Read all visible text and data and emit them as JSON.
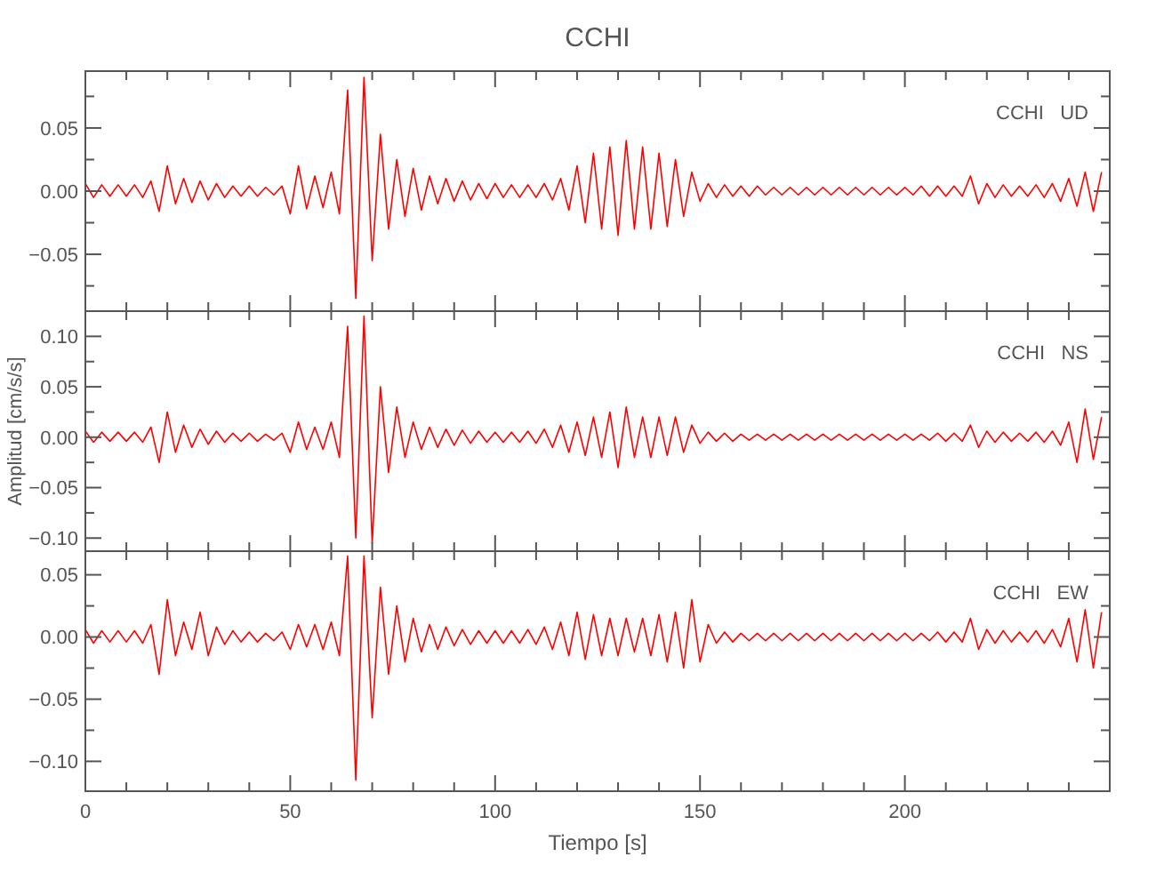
{
  "chart_data": [
    {
      "type": "line",
      "title": "CCHI",
      "annotations": [
        "CCHI   UD"
      ],
      "tick_labels": "y",
      "xlim": [
        0,
        250
      ],
      "ylim": [
        -0.095,
        0.095
      ],
      "xticks": [
        0,
        {
          "value": 10,
          "label": null
        },
        {
          "value": 20,
          "label": null
        },
        {
          "value": 30,
          "label": null
        },
        {
          "value": 40,
          "label": null
        },
        50,
        {
          "value": 60,
          "label": null
        },
        {
          "value": 70,
          "label": null
        },
        {
          "value": 80,
          "label": null
        },
        {
          "value": 90,
          "label": null
        },
        100,
        {
          "value": 110,
          "label": null
        },
        {
          "value": 120,
          "label": null
        },
        {
          "value": 130,
          "label": null
        },
        {
          "value": 140,
          "label": null
        },
        150,
        {
          "value": 160,
          "label": null
        },
        {
          "value": 170,
          "label": null
        },
        {
          "value": 180,
          "label": null
        },
        {
          "value": 190,
          "label": null
        },
        200,
        {
          "value": 210,
          "label": null
        },
        {
          "value": 220,
          "label": null
        },
        {
          "value": 230,
          "label": null
        },
        {
          "value": 240,
          "label": null
        }
      ],
      "yticks": [
        {
          "value": -0.075,
          "label": null
        },
        {
          "value": -0.05,
          "label": "−0.05"
        },
        {
          "value": -0.025,
          "label": null
        },
        {
          "value": 0,
          "label": "0.00"
        },
        {
          "value": 0.025,
          "label": null
        },
        {
          "value": 0.05,
          "label": "0.05"
        },
        {
          "value": 0.075,
          "label": null
        }
      ],
      "x": [
        0,
        2,
        4,
        6,
        8,
        10,
        12,
        14,
        16,
        18,
        20,
        22,
        24,
        26,
        28,
        30,
        32,
        34,
        36,
        38,
        40,
        42,
        44,
        46,
        48,
        50,
        52,
        54,
        56,
        58,
        60,
        62,
        64,
        66,
        68,
        70,
        72,
        74,
        76,
        78,
        80,
        82,
        84,
        86,
        88,
        90,
        92,
        94,
        96,
        98,
        100,
        102,
        104,
        106,
        108,
        110,
        112,
        114,
        116,
        118,
        120,
        122,
        124,
        126,
        128,
        130,
        132,
        134,
        136,
        138,
        140,
        142,
        144,
        146,
        148,
        150,
        152,
        154,
        156,
        158,
        160,
        162,
        164,
        166,
        168,
        170,
        172,
        174,
        176,
        178,
        180,
        182,
        184,
        186,
        188,
        190,
        192,
        194,
        196,
        198,
        200,
        202,
        204,
        206,
        208,
        210,
        212,
        214,
        216,
        218,
        220,
        222,
        224,
        226,
        228,
        230,
        232,
        234,
        236,
        238,
        240,
        242,
        244,
        246,
        248
      ],
      "series": [
        {
          "color": "#ff0000",
          "values": [
            0.006,
            -0.005,
            0.005,
            -0.004,
            0.005,
            -0.004,
            0.005,
            -0.005,
            0.008,
            -0.016,
            0.02,
            -0.01,
            0.01,
            -0.009,
            0.008,
            -0.007,
            0.006,
            -0.005,
            0.004,
            -0.004,
            0.004,
            -0.004,
            0.003,
            -0.003,
            0.004,
            -0.018,
            0.02,
            -0.014,
            0.012,
            -0.013,
            0.015,
            -0.018,
            0.08,
            -0.085,
            0.09,
            -0.055,
            0.045,
            -0.03,
            0.025,
            -0.02,
            0.018,
            -0.015,
            0.012,
            -0.01,
            0.01,
            -0.008,
            0.008,
            -0.007,
            0.006,
            -0.006,
            0.006,
            -0.005,
            0.005,
            -0.005,
            0.005,
            -0.005,
            0.006,
            -0.007,
            0.01,
            -0.015,
            0.02,
            -0.025,
            0.03,
            -0.03,
            0.035,
            -0.035,
            0.04,
            -0.03,
            0.035,
            -0.03,
            0.03,
            -0.028,
            0.025,
            -0.02,
            0.015,
            -0.008,
            0.006,
            -0.005,
            0.005,
            -0.004,
            0.004,
            -0.004,
            0.004,
            -0.003,
            0.003,
            -0.003,
            0.003,
            -0.003,
            0.003,
            -0.003,
            0.003,
            -0.003,
            0.003,
            -0.003,
            0.003,
            -0.003,
            0.003,
            -0.003,
            0.003,
            -0.003,
            0.003,
            -0.003,
            0.004,
            -0.004,
            0.004,
            -0.004,
            0.004,
            -0.004,
            0.012,
            -0.01,
            0.006,
            -0.005,
            0.005,
            -0.004,
            0.004,
            -0.004,
            0.005,
            -0.005,
            0.006,
            -0.008,
            0.01,
            -0.012,
            0.015,
            -0.016,
            0.015
          ]
        }
      ]
    },
    {
      "type": "line",
      "ylabel": "Amplitud [cm/s/s]",
      "annotations": [
        "CCHI   NS"
      ],
      "tick_labels": "y",
      "xlim": [
        0,
        250
      ],
      "ylim": [
        -0.113,
        0.125
      ],
      "xticks": [
        0,
        {
          "value": 10,
          "label": null
        },
        {
          "value": 20,
          "label": null
        },
        {
          "value": 30,
          "label": null
        },
        {
          "value": 40,
          "label": null
        },
        50,
        {
          "value": 60,
          "label": null
        },
        {
          "value": 70,
          "label": null
        },
        {
          "value": 80,
          "label": null
        },
        {
          "value": 90,
          "label": null
        },
        100,
        {
          "value": 110,
          "label": null
        },
        {
          "value": 120,
          "label": null
        },
        {
          "value": 130,
          "label": null
        },
        {
          "value": 140,
          "label": null
        },
        150,
        {
          "value": 160,
          "label": null
        },
        {
          "value": 170,
          "label": null
        },
        {
          "value": 180,
          "label": null
        },
        {
          "value": 190,
          "label": null
        },
        200,
        {
          "value": 210,
          "label": null
        },
        {
          "value": 220,
          "label": null
        },
        {
          "value": 230,
          "label": null
        },
        {
          "value": 240,
          "label": null
        }
      ],
      "yticks": [
        {
          "value": -0.1,
          "label": "−0.10"
        },
        {
          "value": -0.075,
          "label": null
        },
        {
          "value": -0.05,
          "label": "−0.05"
        },
        {
          "value": -0.025,
          "label": null
        },
        {
          "value": 0,
          "label": "0.00"
        },
        {
          "value": 0.025,
          "label": null
        },
        {
          "value": 0.05,
          "label": "0.05"
        },
        {
          "value": 0.075,
          "label": null
        },
        {
          "value": 0.1,
          "label": "0.10"
        }
      ],
      "x": [
        0,
        2,
        4,
        6,
        8,
        10,
        12,
        14,
        16,
        18,
        20,
        22,
        24,
        26,
        28,
        30,
        32,
        34,
        36,
        38,
        40,
        42,
        44,
        46,
        48,
        50,
        52,
        54,
        56,
        58,
        60,
        62,
        64,
        66,
        68,
        70,
        72,
        74,
        76,
        78,
        80,
        82,
        84,
        86,
        88,
        90,
        92,
        94,
        96,
        98,
        100,
        102,
        104,
        106,
        108,
        110,
        112,
        114,
        116,
        118,
        120,
        122,
        124,
        126,
        128,
        130,
        132,
        134,
        136,
        138,
        140,
        142,
        144,
        146,
        148,
        150,
        152,
        154,
        156,
        158,
        160,
        162,
        164,
        166,
        168,
        170,
        172,
        174,
        176,
        178,
        180,
        182,
        184,
        186,
        188,
        190,
        192,
        194,
        196,
        198,
        200,
        202,
        204,
        206,
        208,
        210,
        212,
        214,
        216,
        218,
        220,
        222,
        224,
        226,
        228,
        230,
        232,
        234,
        236,
        238,
        240,
        242,
        244,
        246,
        248
      ],
      "series": [
        {
          "color": "#ff0000",
          "values": [
            0.006,
            -0.005,
            0.005,
            -0.004,
            0.005,
            -0.004,
            0.005,
            -0.005,
            0.01,
            -0.025,
            0.025,
            -0.015,
            0.012,
            -0.01,
            0.008,
            -0.007,
            0.006,
            -0.005,
            0.004,
            -0.004,
            0.004,
            -0.004,
            0.003,
            -0.003,
            0.004,
            -0.015,
            0.015,
            -0.012,
            0.01,
            -0.012,
            0.015,
            -0.02,
            0.11,
            -0.1,
            0.12,
            -0.105,
            0.05,
            -0.035,
            0.03,
            -0.02,
            0.015,
            -0.012,
            0.01,
            -0.01,
            0.008,
            -0.008,
            0.007,
            -0.006,
            0.006,
            -0.005,
            0.005,
            -0.005,
            0.005,
            -0.005,
            0.006,
            -0.006,
            0.008,
            -0.01,
            0.012,
            -0.015,
            0.015,
            -0.018,
            0.02,
            -0.02,
            0.025,
            -0.03,
            0.03,
            -0.02,
            0.02,
            -0.02,
            0.02,
            -0.018,
            0.02,
            -0.015,
            0.012,
            -0.006,
            0.005,
            -0.004,
            0.004,
            -0.004,
            0.003,
            -0.003,
            0.003,
            -0.003,
            0.003,
            -0.003,
            0.003,
            -0.003,
            0.003,
            -0.003,
            0.003,
            -0.003,
            0.003,
            -0.003,
            0.003,
            -0.003,
            0.003,
            -0.003,
            0.003,
            -0.003,
            0.003,
            -0.003,
            0.003,
            -0.003,
            0.004,
            -0.004,
            0.004,
            -0.004,
            0.012,
            -0.01,
            0.006,
            -0.005,
            0.005,
            -0.004,
            0.004,
            -0.004,
            0.005,
            -0.005,
            0.006,
            -0.008,
            0.015,
            -0.025,
            0.028,
            -0.022,
            0.02
          ]
        }
      ]
    },
    {
      "type": "line",
      "xlabel": "Tiempo [s]",
      "annotations": [
        "CCHI   EW"
      ],
      "xlim": [
        0,
        250
      ],
      "ylim": [
        -0.124,
        0.069
      ],
      "xticks": [
        0,
        {
          "value": 10,
          "label": null
        },
        {
          "value": 20,
          "label": null
        },
        {
          "value": 30,
          "label": null
        },
        {
          "value": 40,
          "label": null
        },
        50,
        {
          "value": 60,
          "label": null
        },
        {
          "value": 70,
          "label": null
        },
        {
          "value": 80,
          "label": null
        },
        {
          "value": 90,
          "label": null
        },
        100,
        {
          "value": 110,
          "label": null
        },
        {
          "value": 120,
          "label": null
        },
        {
          "value": 130,
          "label": null
        },
        {
          "value": 140,
          "label": null
        },
        150,
        {
          "value": 160,
          "label": null
        },
        {
          "value": 170,
          "label": null
        },
        {
          "value": 180,
          "label": null
        },
        {
          "value": 190,
          "label": null
        },
        200,
        {
          "value": 210,
          "label": null
        },
        {
          "value": 220,
          "label": null
        },
        {
          "value": 230,
          "label": null
        },
        {
          "value": 240,
          "label": null
        }
      ],
      "yticks": [
        {
          "value": -0.1,
          "label": "−0.10"
        },
        {
          "value": -0.075,
          "label": null
        },
        {
          "value": -0.05,
          "label": "−0.05"
        },
        {
          "value": -0.025,
          "label": null
        },
        {
          "value": 0,
          "label": "0.00"
        },
        {
          "value": 0.025,
          "label": null
        },
        {
          "value": 0.05,
          "label": "0.05"
        }
      ],
      "x": [
        0,
        2,
        4,
        6,
        8,
        10,
        12,
        14,
        16,
        18,
        20,
        22,
        24,
        26,
        28,
        30,
        32,
        34,
        36,
        38,
        40,
        42,
        44,
        46,
        48,
        50,
        52,
        54,
        56,
        58,
        60,
        62,
        64,
        66,
        68,
        70,
        72,
        74,
        76,
        78,
        80,
        82,
        84,
        86,
        88,
        90,
        92,
        94,
        96,
        98,
        100,
        102,
        104,
        106,
        108,
        110,
        112,
        114,
        116,
        118,
        120,
        122,
        124,
        126,
        128,
        130,
        132,
        134,
        136,
        138,
        140,
        142,
        144,
        146,
        148,
        150,
        152,
        154,
        156,
        158,
        160,
        162,
        164,
        166,
        168,
        170,
        172,
        174,
        176,
        178,
        180,
        182,
        184,
        186,
        188,
        190,
        192,
        194,
        196,
        198,
        200,
        202,
        204,
        206,
        208,
        210,
        212,
        214,
        216,
        218,
        220,
        222,
        224,
        226,
        228,
        230,
        232,
        234,
        236,
        238,
        240,
        242,
        244,
        246,
        248
      ],
      "series": [
        {
          "color": "#ff0000",
          "values": [
            0.006,
            -0.005,
            0.005,
            -0.004,
            0.005,
            -0.004,
            0.005,
            -0.005,
            0.01,
            -0.03,
            0.03,
            -0.015,
            0.012,
            -0.01,
            0.02,
            -0.015,
            0.008,
            -0.006,
            0.005,
            -0.004,
            0.004,
            -0.004,
            0.003,
            -0.003,
            0.004,
            -0.01,
            0.01,
            -0.008,
            0.01,
            -0.01,
            0.012,
            -0.015,
            0.065,
            -0.115,
            0.065,
            -0.065,
            0.04,
            -0.03,
            0.025,
            -0.02,
            0.015,
            -0.012,
            0.01,
            -0.01,
            0.008,
            -0.007,
            0.006,
            -0.006,
            0.005,
            -0.005,
            0.005,
            -0.005,
            0.005,
            -0.005,
            0.006,
            -0.006,
            0.008,
            -0.01,
            0.012,
            -0.015,
            0.02,
            -0.018,
            0.018,
            -0.015,
            0.015,
            -0.015,
            0.015,
            -0.012,
            0.015,
            -0.015,
            0.018,
            -0.02,
            0.02,
            -0.025,
            0.03,
            -0.02,
            0.01,
            -0.005,
            0.004,
            -0.004,
            0.003,
            -0.003,
            0.003,
            -0.003,
            0.003,
            -0.003,
            0.003,
            -0.003,
            0.003,
            -0.003,
            0.003,
            -0.003,
            0.003,
            -0.003,
            0.003,
            -0.003,
            0.003,
            -0.003,
            0.003,
            -0.003,
            0.003,
            -0.003,
            0.003,
            -0.003,
            0.004,
            -0.004,
            0.004,
            -0.004,
            0.015,
            -0.01,
            0.006,
            -0.005,
            0.005,
            -0.004,
            0.004,
            -0.004,
            0.005,
            -0.005,
            0.006,
            -0.008,
            0.015,
            -0.02,
            0.022,
            -0.025,
            0.02
          ]
        }
      ]
    }
  ]
}
